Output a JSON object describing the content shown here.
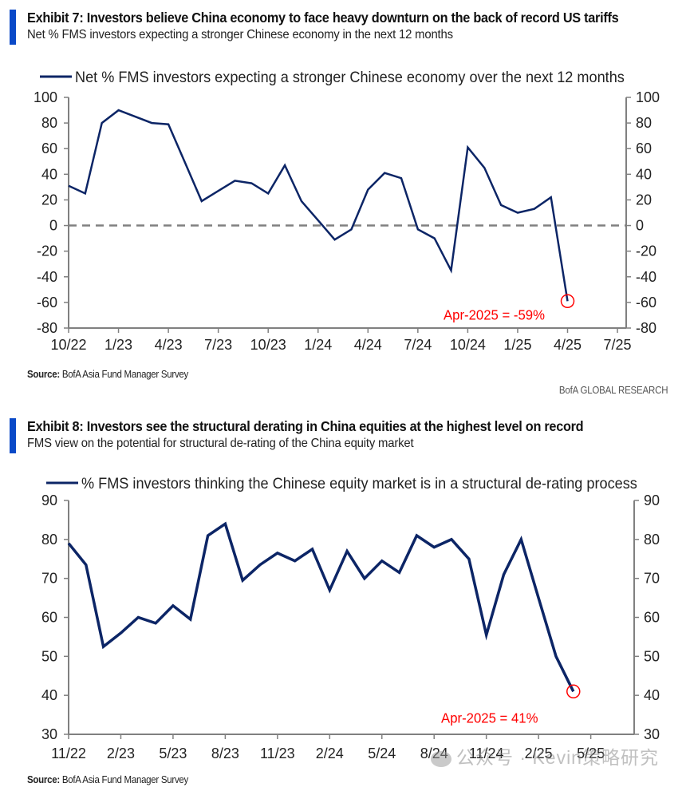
{
  "exhibits": [
    {
      "title": "Exhibit 7: Investors believe China economy to face heavy downturn on the back of record US tariffs",
      "subtitle": "Net % FMS investors expecting a stronger Chinese economy in the next 12 months",
      "source_label": "Source:",
      "source_text": "BofA Asia Fund Manager Survey"
    },
    {
      "title": "Exhibit 8: Investors see the structural derating in China equities at the highest level on record",
      "subtitle": "FMS view on the potential for structural de-rating of the China equity market",
      "source_label": "Source:",
      "source_text": "BofA Asia Fund Manager Survey"
    }
  ],
  "brand": "BofA GLOBAL RESEARCH",
  "watermark": "公众号 · Kevin策略研究",
  "colors": {
    "accent": "#0a49c8",
    "series": "#0c2566",
    "annotation": "#ff0000",
    "axis": "#808080",
    "zero_line": "#808080"
  },
  "chart_data": [
    {
      "type": "line",
      "title": "Net % FMS investors expecting a stronger Chinese economy in the next 12 months",
      "legend": "Net % FMS investors expecting a stronger Chinese economy over the next 12 months",
      "legend_position": "top",
      "xlabel": "",
      "ylabel": "",
      "ylim": [
        -80,
        100
      ],
      "yticks": [
        100,
        80,
        60,
        40,
        20,
        0,
        -20,
        -40,
        -60,
        -80
      ],
      "secondary_y_axis": true,
      "x_start": "2022-10",
      "x_end": "2025-07",
      "xtick_labels": [
        "10/22",
        "1/23",
        "4/23",
        "7/23",
        "10/23",
        "1/24",
        "4/24",
        "7/24",
        "10/24",
        "1/25",
        "4/25",
        "7/25"
      ],
      "zero_line": "dashed",
      "grid": false,
      "series": [
        {
          "name": "Net % FMS investors expecting a stronger Chinese economy over the next 12 months",
          "x": [
            "2022-10",
            "2022-11",
            "2022-12",
            "2023-01",
            "2023-02",
            "2023-03",
            "2023-04",
            "2023-05",
            "2023-06",
            "2023-07",
            "2023-08",
            "2023-09",
            "2023-10",
            "2023-11",
            "2023-12",
            "2024-01",
            "2024-02",
            "2024-03",
            "2024-04",
            "2024-05",
            "2024-06",
            "2024-07",
            "2024-08",
            "2024-09",
            "2024-10",
            "2024-11",
            "2024-12",
            "2025-01",
            "2025-02",
            "2025-03",
            "2025-04"
          ],
          "values": [
            31,
            25,
            80,
            90,
            85,
            80,
            79,
            49,
            19,
            27,
            35,
            33,
            25,
            47,
            19,
            4,
            -11,
            -3,
            28,
            41,
            37,
            -3,
            -10,
            -35,
            61,
            45,
            16,
            10,
            13,
            22,
            -59
          ]
        }
      ],
      "annotations": [
        {
          "text": "Apr-2025 = -59%",
          "x": "2025-04",
          "y": -59,
          "marker": "circle"
        }
      ]
    },
    {
      "type": "line",
      "title": "FMS view on the potential for structural de-rating of the China equity market",
      "legend": "% FMS investors thinking the Chinese equity market is in a structural de-rating process",
      "legend_position": "top",
      "xlabel": "",
      "ylabel": "",
      "ylim": [
        30,
        90
      ],
      "yticks": [
        90,
        80,
        70,
        60,
        50,
        40,
        30
      ],
      "secondary_y_axis": true,
      "x_start": "2022-11",
      "x_end": "2025-07",
      "xtick_labels": [
        "11/22",
        "2/23",
        "5/23",
        "8/23",
        "11/23",
        "2/24",
        "5/24",
        "8/24",
        "11/24",
        "2/25",
        "5/25"
      ],
      "grid": false,
      "series": [
        {
          "name": "% FMS investors thinking the Chinese equity market is in a structural de-rating process",
          "x": [
            "2022-11",
            "2022-12",
            "2023-01",
            "2023-02",
            "2023-03",
            "2023-04",
            "2023-05",
            "2023-06",
            "2023-07",
            "2023-08",
            "2023-09",
            "2023-10",
            "2023-11",
            "2023-12",
            "2024-01",
            "2024-02",
            "2024-03",
            "2024-04",
            "2024-05",
            "2024-06",
            "2024-07",
            "2024-08",
            "2024-09",
            "2024-10",
            "2024-11",
            "2024-12",
            "2025-01",
            "2025-02",
            "2025-03",
            "2025-04"
          ],
          "values": [
            79,
            73.5,
            52.5,
            56,
            60,
            58.5,
            63,
            59.5,
            81,
            84,
            69.5,
            73.5,
            76.5,
            74.5,
            77.5,
            67,
            77,
            70,
            74.5,
            71.5,
            81,
            78,
            80,
            75,
            55.5,
            71,
            80,
            65,
            50,
            41
          ]
        }
      ],
      "annotations": [
        {
          "text": "Apr-2025 = 41%",
          "x": "2025-04",
          "y": 41,
          "marker": "circle"
        }
      ]
    }
  ]
}
